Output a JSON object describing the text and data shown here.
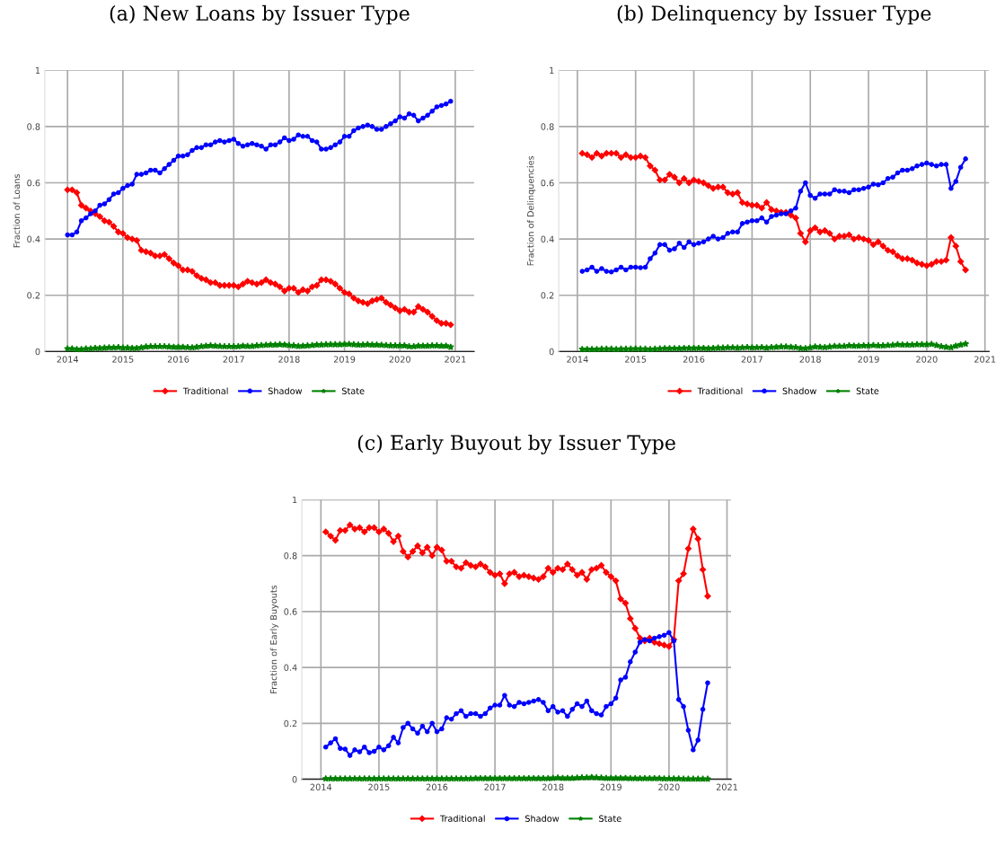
{
  "chart_data": [
    {
      "type": "line",
      "title": "(a) New Loans by Issuer Type",
      "ylabel": "Fraction of Loans",
      "x": [
        2014.0,
        2014.083,
        2014.167,
        2014.25,
        2014.333,
        2014.417,
        2014.5,
        2014.583,
        2014.667,
        2014.75,
        2014.833,
        2014.917,
        2015.0,
        2015.083,
        2015.167,
        2015.25,
        2015.333,
        2015.417,
        2015.5,
        2015.583,
        2015.667,
        2015.75,
        2015.833,
        2015.917,
        2016.0,
        2016.083,
        2016.167,
        2016.25,
        2016.333,
        2016.417,
        2016.5,
        2016.583,
        2016.667,
        2016.75,
        2016.833,
        2016.917,
        2017.0,
        2017.083,
        2017.167,
        2017.25,
        2017.333,
        2017.417,
        2017.5,
        2017.583,
        2017.667,
        2017.75,
        2017.833,
        2017.917,
        2018.0,
        2018.083,
        2018.167,
        2018.25,
        2018.333,
        2018.417,
        2018.5,
        2018.583,
        2018.667,
        2018.75,
        2018.833,
        2018.917,
        2019.0,
        2019.083,
        2019.167,
        2019.25,
        2019.333,
        2019.417,
        2019.5,
        2019.583,
        2019.667,
        2019.75,
        2019.833,
        2019.917,
        2020.0,
        2020.083,
        2020.167,
        2020.25,
        2020.333,
        2020.417,
        2020.5,
        2020.583,
        2020.667,
        2020.75,
        2020.833,
        2020.917
      ],
      "xlim": [
        2013.59,
        2021.34
      ],
      "xticks": [
        2014,
        2015,
        2016,
        2017,
        2018,
        2019,
        2020,
        2021
      ],
      "ylim": [
        0,
        1
      ],
      "yticks": [
        0,
        0.2,
        0.4,
        0.6,
        0.8,
        1
      ],
      "grid": true,
      "legend": "bottom",
      "line_style": "solid",
      "series": [
        {
          "name": "Traditional",
          "color": "#ff0000",
          "marker": "diamond",
          "values": [
            0.575,
            0.575,
            0.565,
            0.52,
            0.51,
            0.5,
            0.49,
            0.48,
            0.465,
            0.46,
            0.445,
            0.425,
            0.42,
            0.405,
            0.4,
            0.395,
            0.36,
            0.355,
            0.35,
            0.34,
            0.34,
            0.345,
            0.33,
            0.315,
            0.305,
            0.29,
            0.29,
            0.285,
            0.27,
            0.26,
            0.255,
            0.245,
            0.245,
            0.235,
            0.235,
            0.235,
            0.235,
            0.23,
            0.24,
            0.25,
            0.245,
            0.24,
            0.245,
            0.255,
            0.245,
            0.24,
            0.23,
            0.215,
            0.225,
            0.225,
            0.21,
            0.22,
            0.215,
            0.23,
            0.235,
            0.255,
            0.255,
            0.25,
            0.24,
            0.225,
            0.21,
            0.205,
            0.19,
            0.18,
            0.175,
            0.17,
            0.18,
            0.185,
            0.19,
            0.175,
            0.165,
            0.155,
            0.145,
            0.15,
            0.14,
            0.14,
            0.16,
            0.15,
            0.14,
            0.125,
            0.11,
            0.1,
            0.1,
            0.095
          ]
        },
        {
          "name": "Shadow",
          "color": "#0000ff",
          "marker": "circle",
          "values": [
            0.415,
            0.415,
            0.425,
            0.465,
            0.475,
            0.49,
            0.5,
            0.52,
            0.525,
            0.54,
            0.56,
            0.565,
            0.58,
            0.59,
            0.595,
            0.63,
            0.63,
            0.635,
            0.645,
            0.645,
            0.635,
            0.65,
            0.665,
            0.68,
            0.695,
            0.695,
            0.7,
            0.715,
            0.725,
            0.725,
            0.735,
            0.735,
            0.745,
            0.75,
            0.745,
            0.75,
            0.755,
            0.74,
            0.73,
            0.735,
            0.74,
            0.735,
            0.73,
            0.72,
            0.735,
            0.735,
            0.745,
            0.76,
            0.75,
            0.755,
            0.77,
            0.765,
            0.765,
            0.75,
            0.745,
            0.72,
            0.72,
            0.725,
            0.735,
            0.745,
            0.765,
            0.765,
            0.785,
            0.795,
            0.8,
            0.805,
            0.8,
            0.79,
            0.79,
            0.8,
            0.81,
            0.82,
            0.835,
            0.83,
            0.845,
            0.84,
            0.82,
            0.83,
            0.84,
            0.855,
            0.87,
            0.875,
            0.88,
            0.89
          ]
        },
        {
          "name": "State",
          "color": "#008000",
          "marker": "star",
          "values": [
            0.01,
            0.01,
            0.008,
            0.008,
            0.01,
            0.01,
            0.012,
            0.012,
            0.013,
            0.014,
            0.014,
            0.015,
            0.013,
            0.013,
            0.012,
            0.012,
            0.014,
            0.017,
            0.018,
            0.018,
            0.018,
            0.018,
            0.017,
            0.016,
            0.016,
            0.016,
            0.015,
            0.014,
            0.016,
            0.018,
            0.02,
            0.021,
            0.02,
            0.019,
            0.018,
            0.018,
            0.018,
            0.018,
            0.02,
            0.019,
            0.019,
            0.021,
            0.022,
            0.023,
            0.024,
            0.024,
            0.025,
            0.024,
            0.022,
            0.021,
            0.019,
            0.02,
            0.021,
            0.022,
            0.024,
            0.024,
            0.025,
            0.025,
            0.025,
            0.025,
            0.026,
            0.026,
            0.025,
            0.024,
            0.024,
            0.025,
            0.024,
            0.024,
            0.023,
            0.022,
            0.021,
            0.021,
            0.021,
            0.021,
            0.018,
            0.018,
            0.02,
            0.02,
            0.02,
            0.021,
            0.021,
            0.02,
            0.02,
            0.016
          ]
        }
      ]
    },
    {
      "type": "line",
      "title": "(b) Delinquency by Issuer Type",
      "ylabel": "Fraction of Delinquencies",
      "x": [
        2014.083,
        2014.167,
        2014.25,
        2014.333,
        2014.417,
        2014.5,
        2014.583,
        2014.667,
        2014.75,
        2014.833,
        2014.917,
        2015.0,
        2015.083,
        2015.167,
        2015.25,
        2015.333,
        2015.417,
        2015.5,
        2015.583,
        2015.667,
        2015.75,
        2015.833,
        2015.917,
        2016.0,
        2016.083,
        2016.167,
        2016.25,
        2016.333,
        2016.417,
        2016.5,
        2016.583,
        2016.667,
        2016.75,
        2016.833,
        2016.917,
        2017.0,
        2017.083,
        2017.167,
        2017.25,
        2017.333,
        2017.417,
        2017.5,
        2017.583,
        2017.667,
        2017.75,
        2017.833,
        2017.917,
        2018.0,
        2018.083,
        2018.167,
        2018.25,
        2018.333,
        2018.417,
        2018.5,
        2018.583,
        2018.667,
        2018.75,
        2018.833,
        2018.917,
        2019.0,
        2019.083,
        2019.167,
        2019.25,
        2019.333,
        2019.417,
        2019.5,
        2019.583,
        2019.667,
        2019.75,
        2019.833,
        2019.917,
        2020.0,
        2020.083,
        2020.167,
        2020.25,
        2020.333,
        2020.417,
        2020.5,
        2020.583,
        2020.667
      ],
      "xlim": [
        2013.68,
        2021.07
      ],
      "xticks": [
        2014,
        2015,
        2016,
        2017,
        2018,
        2019,
        2020,
        2021
      ],
      "ylim": [
        0,
        1
      ],
      "yticks": [
        0,
        0.2,
        0.4,
        0.6,
        0.8,
        1
      ],
      "grid": true,
      "legend": "bottom",
      "line_style": "solid",
      "series": [
        {
          "name": "Traditional",
          "color": "#ff0000",
          "marker": "diamond",
          "values": [
            0.705,
            0.7,
            0.69,
            0.705,
            0.695,
            0.705,
            0.705,
            0.705,
            0.69,
            0.7,
            0.69,
            0.69,
            0.695,
            0.69,
            0.66,
            0.645,
            0.61,
            0.61,
            0.63,
            0.62,
            0.6,
            0.615,
            0.6,
            0.61,
            0.605,
            0.6,
            0.59,
            0.58,
            0.585,
            0.585,
            0.565,
            0.56,
            0.565,
            0.53,
            0.525,
            0.52,
            0.52,
            0.51,
            0.53,
            0.505,
            0.5,
            0.495,
            0.495,
            0.485,
            0.475,
            0.42,
            0.39,
            0.43,
            0.44,
            0.425,
            0.43,
            0.42,
            0.4,
            0.41,
            0.41,
            0.415,
            0.4,
            0.405,
            0.4,
            0.395,
            0.38,
            0.39,
            0.375,
            0.36,
            0.355,
            0.34,
            0.33,
            0.33,
            0.325,
            0.315,
            0.31,
            0.305,
            0.31,
            0.32,
            0.32,
            0.325,
            0.405,
            0.375,
            0.32,
            0.29
          ]
        },
        {
          "name": "Shadow",
          "color": "#0000ff",
          "marker": "circle",
          "values": [
            0.285,
            0.29,
            0.3,
            0.285,
            0.295,
            0.285,
            0.283,
            0.29,
            0.3,
            0.29,
            0.3,
            0.3,
            0.298,
            0.3,
            0.33,
            0.35,
            0.38,
            0.38,
            0.36,
            0.365,
            0.385,
            0.37,
            0.39,
            0.38,
            0.385,
            0.39,
            0.4,
            0.41,
            0.4,
            0.405,
            0.42,
            0.425,
            0.425,
            0.455,
            0.46,
            0.465,
            0.465,
            0.475,
            0.46,
            0.48,
            0.485,
            0.49,
            0.49,
            0.5,
            0.51,
            0.57,
            0.6,
            0.555,
            0.545,
            0.56,
            0.56,
            0.56,
            0.575,
            0.57,
            0.57,
            0.565,
            0.575,
            0.575,
            0.58,
            0.585,
            0.595,
            0.593,
            0.6,
            0.615,
            0.62,
            0.635,
            0.645,
            0.645,
            0.65,
            0.66,
            0.665,
            0.67,
            0.665,
            0.66,
            0.665,
            0.665,
            0.58,
            0.605,
            0.655,
            0.685
          ]
        },
        {
          "name": "State",
          "color": "#008000",
          "marker": "star",
          "values": [
            0.008,
            0.008,
            0.008,
            0.008,
            0.009,
            0.009,
            0.009,
            0.008,
            0.009,
            0.009,
            0.009,
            0.01,
            0.009,
            0.009,
            0.008,
            0.009,
            0.01,
            0.011,
            0.011,
            0.011,
            0.011,
            0.012,
            0.012,
            0.012,
            0.012,
            0.012,
            0.011,
            0.012,
            0.013,
            0.013,
            0.014,
            0.014,
            0.013,
            0.014,
            0.015,
            0.014,
            0.014,
            0.015,
            0.013,
            0.015,
            0.016,
            0.017,
            0.017,
            0.016,
            0.015,
            0.012,
            0.011,
            0.014,
            0.017,
            0.016,
            0.015,
            0.017,
            0.019,
            0.019,
            0.019,
            0.021,
            0.02,
            0.02,
            0.021,
            0.021,
            0.022,
            0.021,
            0.021,
            0.022,
            0.023,
            0.025,
            0.024,
            0.024,
            0.024,
            0.025,
            0.025,
            0.025,
            0.026,
            0.022,
            0.018,
            0.016,
            0.014,
            0.02,
            0.024,
            0.027
          ]
        }
      ]
    },
    {
      "type": "line",
      "title": "(c) Early Buyout by Issuer Type",
      "ylabel": "Fraction of Early Buyouts",
      "x": [
        2014.083,
        2014.167,
        2014.25,
        2014.333,
        2014.417,
        2014.5,
        2014.583,
        2014.667,
        2014.75,
        2014.833,
        2014.917,
        2015.0,
        2015.083,
        2015.167,
        2015.25,
        2015.333,
        2015.417,
        2015.5,
        2015.583,
        2015.667,
        2015.75,
        2015.833,
        2015.917,
        2016.0,
        2016.083,
        2016.167,
        2016.25,
        2016.333,
        2016.417,
        2016.5,
        2016.583,
        2016.667,
        2016.75,
        2016.833,
        2016.917,
        2017.0,
        2017.083,
        2017.167,
        2017.25,
        2017.333,
        2017.417,
        2017.5,
        2017.583,
        2017.667,
        2017.75,
        2017.833,
        2017.917,
        2018.0,
        2018.083,
        2018.167,
        2018.25,
        2018.333,
        2018.417,
        2018.5,
        2018.583,
        2018.667,
        2018.75,
        2018.833,
        2018.917,
        2019.0,
        2019.083,
        2019.167,
        2019.25,
        2019.333,
        2019.417,
        2019.5,
        2019.583,
        2019.667,
        2019.75,
        2019.833,
        2019.917,
        2020.0,
        2020.083,
        2020.167,
        2020.25,
        2020.333,
        2020.417,
        2020.5,
        2020.583,
        2020.667
      ],
      "xlim": [
        2013.67,
        2021.07
      ],
      "xticks": [
        2014,
        2015,
        2016,
        2017,
        2018,
        2019,
        2020,
        2021
      ],
      "ylim": [
        0,
        1
      ],
      "yticks": [
        0,
        0.2,
        0.4,
        0.6,
        0.8,
        1
      ],
      "grid": true,
      "legend": "bottom",
      "line_style": "solid",
      "series": [
        {
          "name": "Traditional",
          "color": "#ff0000",
          "marker": "diamond",
          "values": [
            0.885,
            0.87,
            0.855,
            0.89,
            0.89,
            0.91,
            0.895,
            0.9,
            0.885,
            0.9,
            0.9,
            0.885,
            0.895,
            0.88,
            0.85,
            0.87,
            0.815,
            0.795,
            0.815,
            0.835,
            0.81,
            0.83,
            0.8,
            0.83,
            0.82,
            0.78,
            0.78,
            0.76,
            0.755,
            0.775,
            0.765,
            0.76,
            0.77,
            0.76,
            0.74,
            0.73,
            0.735,
            0.7,
            0.735,
            0.74,
            0.725,
            0.73,
            0.725,
            0.72,
            0.715,
            0.725,
            0.755,
            0.74,
            0.755,
            0.75,
            0.77,
            0.75,
            0.73,
            0.74,
            0.715,
            0.75,
            0.755,
            0.765,
            0.74,
            0.725,
            0.71,
            0.645,
            0.63,
            0.575,
            0.54,
            0.505,
            0.495,
            0.505,
            0.49,
            0.485,
            0.48,
            0.475,
            0.5,
            0.71,
            0.735,
            0.825,
            0.895,
            0.86,
            0.75,
            0.655
          ]
        },
        {
          "name": "Shadow",
          "color": "#0000ff",
          "marker": "circle",
          "values": [
            0.115,
            0.13,
            0.145,
            0.11,
            0.108,
            0.085,
            0.105,
            0.098,
            0.115,
            0.095,
            0.1,
            0.115,
            0.105,
            0.12,
            0.15,
            0.13,
            0.185,
            0.2,
            0.18,
            0.165,
            0.19,
            0.17,
            0.2,
            0.17,
            0.18,
            0.22,
            0.215,
            0.235,
            0.245,
            0.225,
            0.235,
            0.235,
            0.225,
            0.235,
            0.255,
            0.265,
            0.265,
            0.3,
            0.265,
            0.26,
            0.275,
            0.27,
            0.275,
            0.28,
            0.285,
            0.275,
            0.245,
            0.26,
            0.24,
            0.245,
            0.225,
            0.25,
            0.27,
            0.26,
            0.28,
            0.245,
            0.235,
            0.23,
            0.26,
            0.27,
            0.29,
            0.355,
            0.365,
            0.42,
            0.455,
            0.49,
            0.5,
            0.495,
            0.505,
            0.51,
            0.515,
            0.525,
            0.495,
            0.285,
            0.26,
            0.175,
            0.105,
            0.14,
            0.25,
            0.345
          ]
        },
        {
          "name": "State",
          "color": "#008000",
          "marker": "star",
          "values": [
            0.002,
            0.002,
            0.002,
            0.002,
            0.002,
            0.002,
            0.002,
            0.002,
            0.002,
            0.002,
            0.002,
            0.002,
            0.002,
            0.002,
            0.002,
            0.002,
            0.002,
            0.002,
            0.002,
            0.002,
            0.002,
            0.002,
            0.002,
            0.002,
            0.002,
            0.002,
            0.002,
            0.002,
            0.002,
            0.002,
            0.002,
            0.003,
            0.003,
            0.003,
            0.003,
            0.003,
            0.003,
            0.003,
            0.003,
            0.003,
            0.003,
            0.003,
            0.003,
            0.003,
            0.003,
            0.003,
            0.003,
            0.004,
            0.005,
            0.004,
            0.004,
            0.004,
            0.005,
            0.006,
            0.006,
            0.007,
            0.006,
            0.005,
            0.004,
            0.004,
            0.004,
            0.004,
            0.004,
            0.003,
            0.003,
            0.003,
            0.003,
            0.003,
            0.003,
            0.003,
            0.002,
            0.002,
            0.002,
            0.002,
            0.001,
            0.001,
            0.001,
            0.001,
            0.001,
            0.001
          ]
        }
      ]
    }
  ]
}
